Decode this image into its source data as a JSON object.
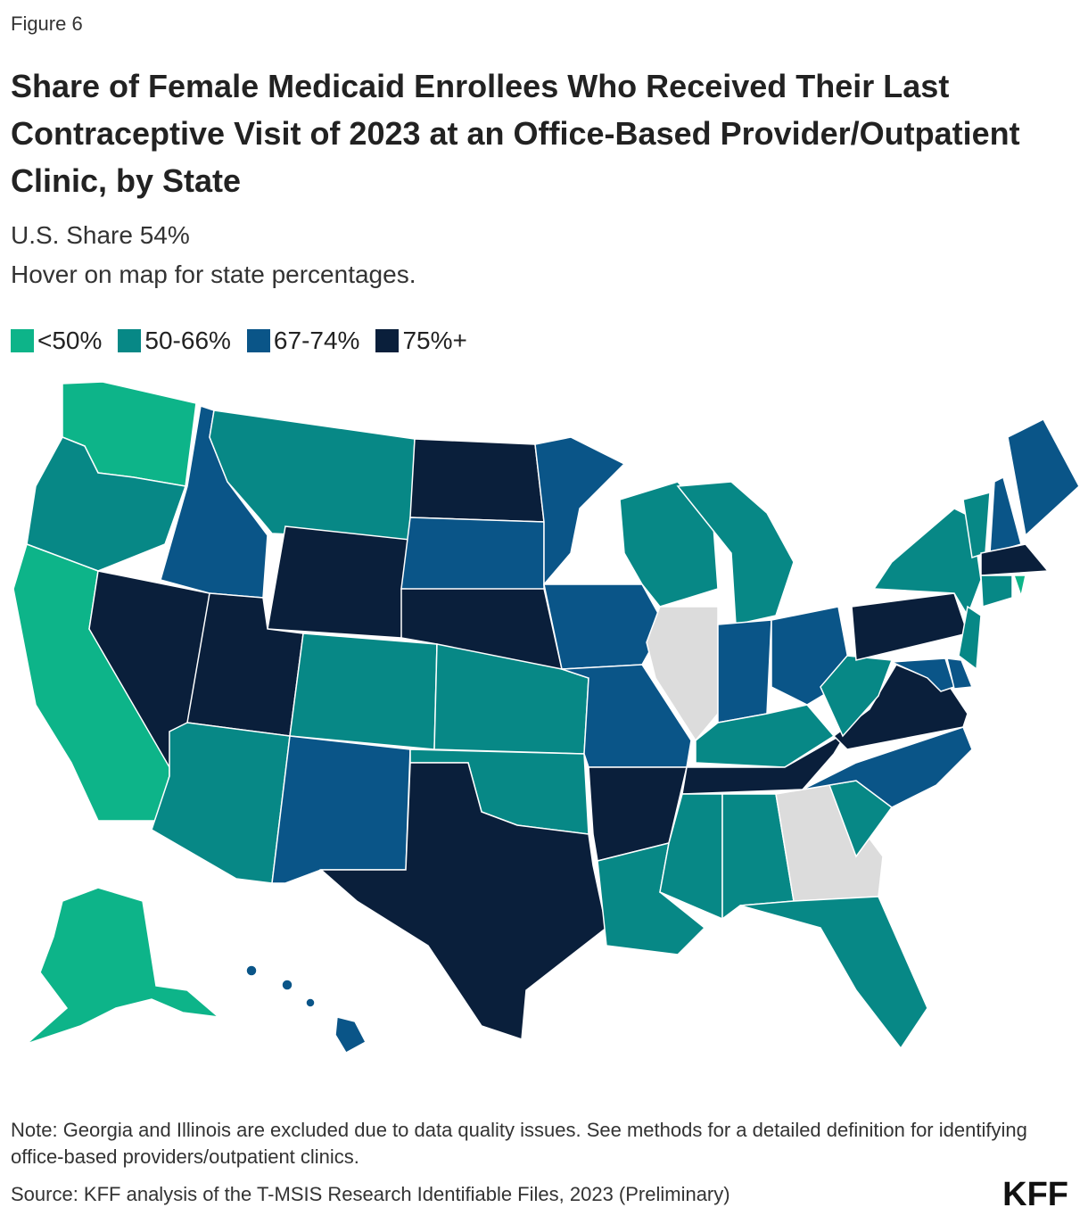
{
  "figure_label": "Figure 6",
  "title": "Share of Female Medicaid Enrollees Who Received Their Last Contraceptive Visit of 2023 at an Office-Based Provider/Outpatient Clinic, by State",
  "subtitle": "U.S. Share 54%",
  "instruction": "Hover on map for state percentages.",
  "legend": [
    {
      "label": "<50%",
      "color": "#0db489"
    },
    {
      "label": "50-66%",
      "color": "#078886"
    },
    {
      "label": "67-74%",
      "color": "#0a5588"
    },
    {
      "label": "75%+",
      "color": "#0a1f3b"
    }
  ],
  "excluded_color": "#dcdcdc",
  "note": "Note: Georgia and Illinois are excluded due to data quality issues. See methods for a detailed definition for identifying office-based providers/outpatient clinics.",
  "source": "Source: KFF analysis of the T-MSIS Research Identifiable Files, 2023 (Preliminary)",
  "logo": "KFF"
}
